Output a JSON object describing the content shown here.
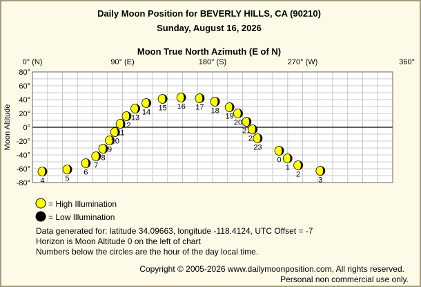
{
  "header": {
    "title": "Daily Moon Position for BEVERLY HILLS, CA (90210)",
    "date": "Sunday, August 16, 2026"
  },
  "legend": {
    "high_label": "= High Illumination",
    "low_label": "= Low Illumination",
    "high_color": "#ffff00",
    "low_color": "#000000"
  },
  "notes": {
    "line1": "Data generated for: latitude 34.09663, longitude -118.4124, UTC Offset = -7",
    "line2": "Horizon is Moon Altitude 0 on the left of chart",
    "line3": "Numbers below the circles are the hour of the day local time."
  },
  "footer": {
    "copyright": "Copyright © 2005-2026 www.dailymoonposition.com, All rights reserved.",
    "personal": "Personal non commercial use only."
  },
  "chart_data": {
    "type": "scatter",
    "title": "Moon True North Azimuth (E of N)",
    "xlabel": "Moon True North Azimuth (E of N)",
    "ylabel": "Moon Altitude",
    "xlim": [
      0,
      360
    ],
    "ylim": [
      -80,
      80
    ],
    "x_ticks": [
      {
        "value": 0,
        "label": "0° (N)"
      },
      {
        "value": 90,
        "label": "90° (E)"
      },
      {
        "value": 180,
        "label": "180° (S)"
      },
      {
        "value": 270,
        "label": "270° (W)"
      },
      {
        "value": 360,
        "label": "360°"
      }
    ],
    "y_ticks": [
      {
        "value": 80,
        "label": "80°"
      },
      {
        "value": 60,
        "label": "60°"
      },
      {
        "value": 40,
        "label": "40°"
      },
      {
        "value": 20,
        "label": "20°"
      },
      {
        "value": 0,
        "label": "0°"
      },
      {
        "value": -20,
        "label": "-20°"
      },
      {
        "value": -40,
        "label": "-40°"
      },
      {
        "value": -60,
        "label": "-60°"
      },
      {
        "value": -80,
        "label": "-80°"
      }
    ],
    "grid": true,
    "horizon_altitude": 0,
    "illumination": "high",
    "points": [
      {
        "hour": "0",
        "az": 246.6,
        "alt": -34
      },
      {
        "hour": "1",
        "az": 255.0,
        "alt": -45
      },
      {
        "hour": "2",
        "az": 265.6,
        "alt": -55
      },
      {
        "hour": "3",
        "az": 287.8,
        "alt": -63
      },
      {
        "hour": "4",
        "az": 10.0,
        "alt": -64
      },
      {
        "hour": "5",
        "az": 34.9,
        "alt": -61
      },
      {
        "hour": "6",
        "az": 53.4,
        "alt": -52
      },
      {
        "hour": "7",
        "az": 63.7,
        "alt": -42
      },
      {
        "hour": "8",
        "az": 70.7,
        "alt": -31
      },
      {
        "hour": "9",
        "az": 77.3,
        "alt": -19
      },
      {
        "hour": "10",
        "az": 82.6,
        "alt": -7
      },
      {
        "hour": "11",
        "az": 88.0,
        "alt": 5
      },
      {
        "hour": "12",
        "az": 94.1,
        "alt": 16
      },
      {
        "hour": "13",
        "az": 102.8,
        "alt": 27
      },
      {
        "hour": "14",
        "az": 113.8,
        "alt": 35
      },
      {
        "hour": "15",
        "az": 130.1,
        "alt": 41
      },
      {
        "hour": "16",
        "az": 148.7,
        "alt": 43
      },
      {
        "hour": "17",
        "az": 167.2,
        "alt": 42
      },
      {
        "hour": "18",
        "az": 182.5,
        "alt": 37
      },
      {
        "hour": "19",
        "az": 197.0,
        "alt": 29
      },
      {
        "hour": "20",
        "az": 205.5,
        "alt": 20
      },
      {
        "hour": "21",
        "az": 214.0,
        "alt": 8
      },
      {
        "hour": "22",
        "az": 220.0,
        "alt": -3
      },
      {
        "hour": "23",
        "az": 225.1,
        "alt": -16
      }
    ]
  }
}
